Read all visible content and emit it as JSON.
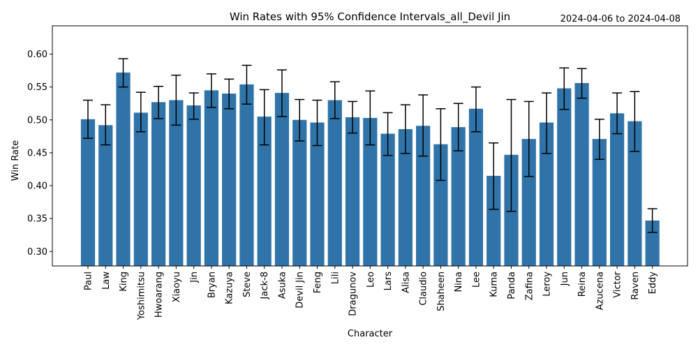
{
  "chart_data": {
    "type": "bar",
    "title": "Win Rates with 95% Confidence Intervals_all_Devil Jin",
    "date_range": "2024-04-06 to 2024-04-08",
    "xlabel": "Character",
    "ylabel": "Win Rate",
    "ylim": [
      0.278,
      0.643
    ],
    "yticks": [
      0.3,
      0.35,
      0.4,
      0.45,
      0.5,
      0.55,
      0.6
    ],
    "bar_color": "#2f73a8",
    "error_color": "#000000",
    "categories": [
      "Paul",
      "Law",
      "King",
      "Yoshimitsu",
      "Hwoarang",
      "Xiaoyu",
      "Jin",
      "Bryan",
      "Kazuya",
      "Steve",
      "Jack-8",
      "Asuka",
      "Devil Jin",
      "Feng",
      "Lili",
      "Dragunov",
      "Leo",
      "Lars",
      "Alisa",
      "Claudio",
      "Shaheen",
      "Nina",
      "Lee",
      "Kuma",
      "Panda",
      "Zafina",
      "Leroy",
      "Jun",
      "Reina",
      "Azucena",
      "Victor",
      "Raven",
      "Eddy"
    ],
    "values": [
      0.501,
      0.492,
      0.572,
      0.511,
      0.527,
      0.53,
      0.522,
      0.545,
      0.54,
      0.554,
      0.505,
      0.541,
      0.5,
      0.496,
      0.53,
      0.504,
      0.503,
      0.479,
      0.486,
      0.491,
      0.463,
      0.489,
      0.517,
      0.415,
      0.447,
      0.471,
      0.496,
      0.548,
      0.556,
      0.471,
      0.51,
      0.498,
      0.347
    ],
    "ci_lower": [
      0.472,
      0.462,
      0.55,
      0.482,
      0.502,
      0.492,
      0.501,
      0.519,
      0.517,
      0.524,
      0.462,
      0.505,
      0.468,
      0.461,
      0.502,
      0.48,
      0.462,
      0.446,
      0.449,
      0.445,
      0.408,
      0.453,
      0.482,
      0.364,
      0.361,
      0.414,
      0.449,
      0.516,
      0.533,
      0.44,
      0.479,
      0.452,
      0.329
    ],
    "ci_upper": [
      0.53,
      0.523,
      0.593,
      0.542,
      0.551,
      0.568,
      0.541,
      0.57,
      0.562,
      0.583,
      0.546,
      0.576,
      0.531,
      0.53,
      0.558,
      0.528,
      0.544,
      0.511,
      0.523,
      0.538,
      0.517,
      0.525,
      0.55,
      0.465,
      0.531,
      0.528,
      0.541,
      0.579,
      0.578,
      0.501,
      0.541,
      0.543,
      0.365
    ]
  }
}
